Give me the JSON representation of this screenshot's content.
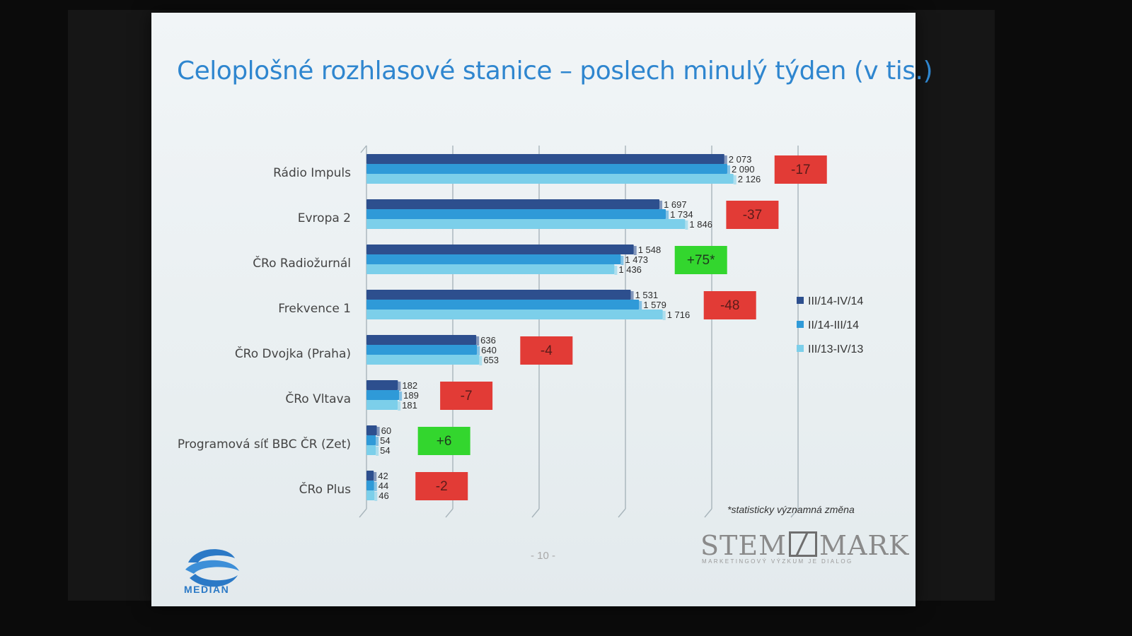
{
  "slide": {
    "title": "Celoplošné rozhlasové stanice – poslech minulý týden (v tis.)",
    "footnote": "*statisticky významná změna",
    "page_number": "- 10 -",
    "logo_left_text": "MEDIAN",
    "logo_right_text_a": "STEM",
    "logo_right_text_b": "MARK",
    "logo_right_tagline": "MARKETINGOVÝ VÝZKUM JE DIALOG"
  },
  "colors": {
    "series": [
      "#2d4f8e",
      "#2f9ad8",
      "#7ccfea"
    ],
    "negative": "#e23b36",
    "positive": "#33d62e"
  },
  "chart_data": {
    "type": "bar",
    "orientation": "horizontal",
    "title": "Celoplošné rozhlasové stanice – poslech minulý týden (v tis.)",
    "categories": [
      "Rádio Impuls",
      "Evropa 2",
      "ČRo Radiožurnál",
      "Frekvence 1",
      "ČRo Dvojka (Praha)",
      "ČRo Vltava",
      "Programová síť BBC ČR (Zet)",
      "ČRo Plus"
    ],
    "series": [
      {
        "name": "III/14-IV/14",
        "values": [
          2073,
          1697,
          1548,
          1531,
          636,
          182,
          60,
          42
        ],
        "labels": [
          "2 073",
          "1 697",
          "1 548",
          "1 531",
          "636",
          "182",
          "60",
          "42"
        ]
      },
      {
        "name": "II/14-III/14",
        "values": [
          2090,
          1734,
          1473,
          1579,
          640,
          189,
          54,
          44
        ],
        "labels": [
          "2 090",
          "1 734",
          "1 473",
          "1 579",
          "640",
          "189",
          "54",
          "44"
        ]
      },
      {
        "name": "III/13-IV/13",
        "values": [
          2126,
          1846,
          1436,
          1716,
          653,
          181,
          54,
          46
        ],
        "labels": [
          "2 126",
          "1 846",
          "1 436",
          "1 716",
          "653",
          "181",
          "54",
          "46"
        ]
      }
    ],
    "changes": [
      "-17",
      "-37",
      "+75*",
      "-48",
      "-4",
      "-7",
      "+6",
      "-2"
    ],
    "change_positive": [
      false,
      false,
      true,
      false,
      false,
      false,
      true,
      false
    ],
    "xlim": [
      0,
      2500
    ],
    "grid": true,
    "legend": "right"
  }
}
